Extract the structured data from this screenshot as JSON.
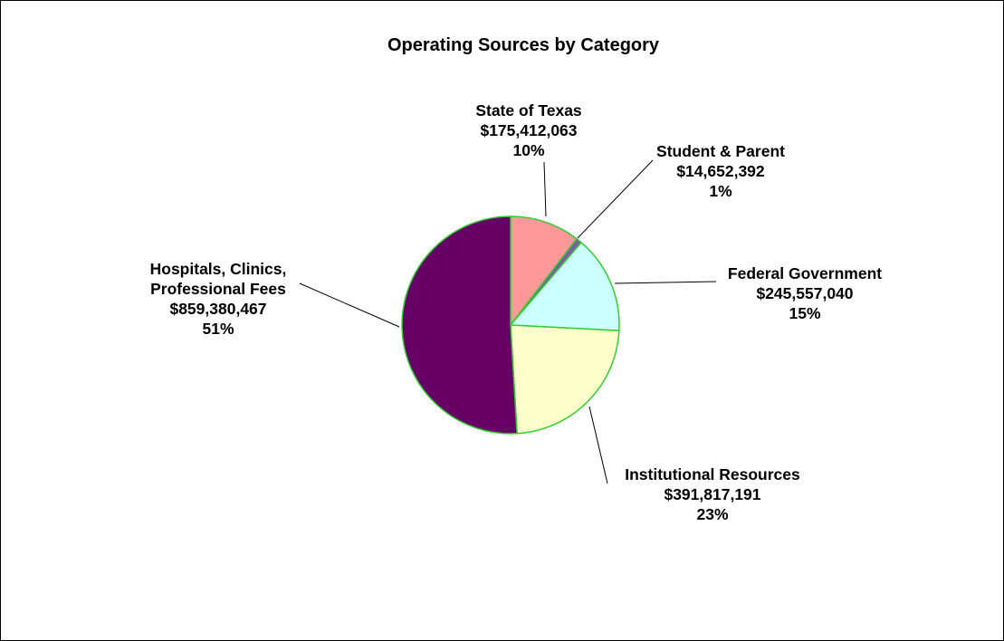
{
  "chart_data": {
    "type": "pie",
    "title": "Operating Sources by Category",
    "slices": [
      {
        "name": "State of Texas",
        "label_lines": [
          "State of Texas"
        ],
        "value": 175412063,
        "value_label": "$175,412,063",
        "percent_label": "10%",
        "color": "#FF9999"
      },
      {
        "name": "Student & Parent",
        "label_lines": [
          "Student & Parent"
        ],
        "value": 14652392,
        "value_label": "$14,652,392",
        "percent_label": "1%",
        "color": "#7B5EA7"
      },
      {
        "name": "Federal Government",
        "label_lines": [
          "Federal Government"
        ],
        "value": 245557040,
        "value_label": "$245,557,040",
        "percent_label": "15%",
        "color": "#CCFFFF"
      },
      {
        "name": "Institutional Resources",
        "label_lines": [
          "Institutional Resources"
        ],
        "value": 391817191,
        "value_label": "$391,817,191",
        "percent_label": "23%",
        "color": "#FFFFCC"
      },
      {
        "name": "Hospitals, Clinics, Professional Fees",
        "label_lines": [
          "Hospitals, Clinics,",
          "Professional Fees"
        ],
        "value": 859380467,
        "value_label": "$859,380,467",
        "percent_label": "51%",
        "color": "#660066"
      }
    ],
    "slice_border_color": "#33CC33",
    "legend": "none"
  }
}
